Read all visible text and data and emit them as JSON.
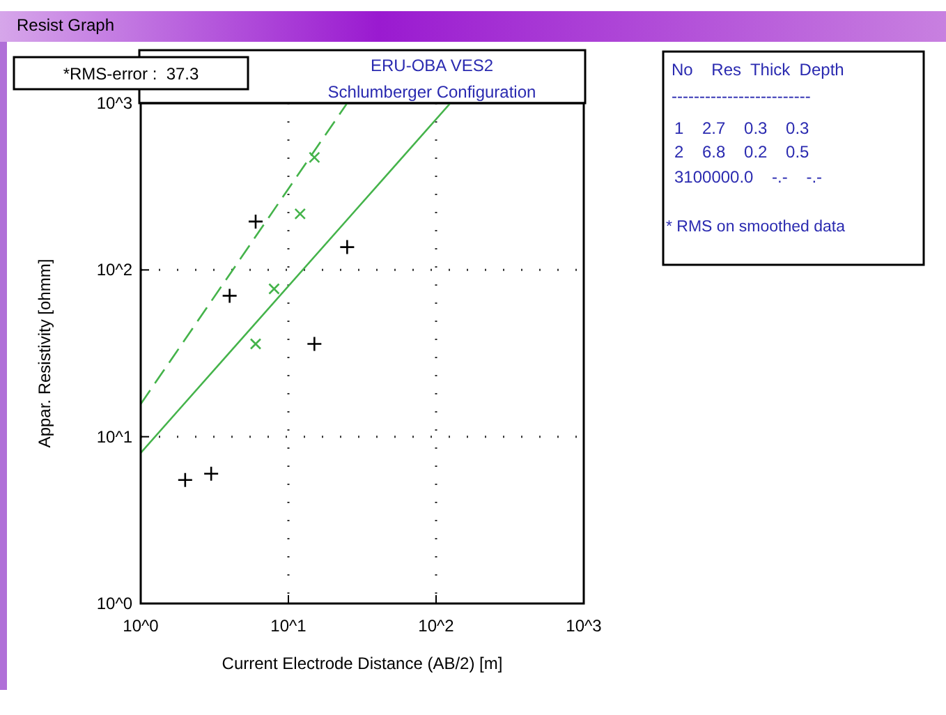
{
  "chart_data": {
    "type": "scatter",
    "title": "ERU-OBA VES2",
    "subtitle": "Schlumberger Configuration",
    "xlabel": "Current Electrode Distance (AB/2) [m]",
    "ylabel": "Appar. Resistivity [ohmm]",
    "log": "xy",
    "grid": true,
    "xlim": [
      1,
      1000
    ],
    "ylim": [
      1,
      1000
    ],
    "xticks": [
      {
        "value": 1,
        "label": "10^0"
      },
      {
        "value": 10,
        "label": "10^1"
      },
      {
        "value": 100,
        "label": "10^2"
      },
      {
        "value": 1000,
        "label": "10^3"
      }
    ],
    "yticks": [
      {
        "value": 1,
        "label": "10^0"
      },
      {
        "value": 10,
        "label": "10^1"
      },
      {
        "value": 100,
        "label": "10^2"
      },
      {
        "value": 1000,
        "label": "10^3"
      }
    ],
    "series": [
      {
        "marker": "cross",
        "color": "#000000",
        "x": [
          2,
          3,
          4,
          6,
          15,
          25
        ],
        "values": [
          5.5,
          6,
          70,
          195,
          36,
          137
        ]
      },
      {
        "marker": "x",
        "color": "#44b34a",
        "x": [
          6,
          8,
          12,
          15
        ],
        "values": [
          36,
          77,
          217,
          473
        ]
      },
      {
        "type": "line",
        "line_style": "solid",
        "color": "#44b34a",
        "x": [
          1,
          125
        ],
        "values": [
          8,
          1000
        ]
      },
      {
        "type": "line",
        "line_style": "dashed",
        "color": "#44b34a",
        "x": [
          1,
          25
        ],
        "values": [
          15.7,
          1000
        ]
      }
    ],
    "annotations": [
      "Resist Graph",
      "*RMS-error :  37.3",
      "No    Res  Thick  Depth",
      "-------------------------",
      "1    2.7    0.3    0.3",
      "2    6.8    0.2    0.5",
      "3100000.0    -.-    -.-",
      "* RMS on smoothed data"
    ]
  }
}
